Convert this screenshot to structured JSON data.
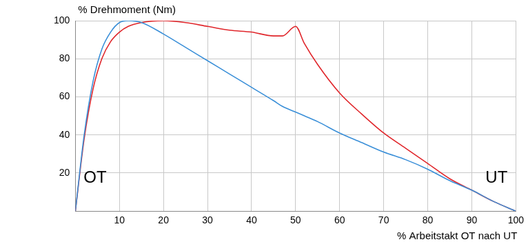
{
  "chart_data": {
    "type": "line",
    "y_label": "% Drehmoment (Nm)",
    "x_label": "% Arbeitstakt OT nach UT",
    "annotations": [
      "OT",
      "UT"
    ],
    "x": [
      0,
      2,
      4,
      6,
      8,
      10,
      12,
      15,
      20,
      25,
      30,
      35,
      40,
      45,
      47,
      50,
      52,
      55,
      60,
      65,
      70,
      75,
      80,
      85,
      90,
      95,
      100
    ],
    "series": [
      {
        "color": "#3a8fd8",
        "values": [
          0,
          40,
          68,
          85,
          94,
          99,
          100,
          99,
          93,
          86,
          79,
          72,
          65,
          58,
          55,
          52,
          50,
          47,
          41,
          36,
          31,
          27,
          22,
          16,
          11,
          5,
          0
        ]
      },
      {
        "color": "#e0262b",
        "values": [
          0,
          38,
          64,
          80,
          89,
          94,
          97,
          99,
          100,
          99,
          97,
          95,
          94,
          92,
          92,
          97,
          88,
          77,
          62,
          51,
          41,
          33,
          25,
          17,
          11,
          5,
          0
        ]
      }
    ],
    "xlim": [
      0,
      100
    ],
    "xticks": [
      10,
      20,
      30,
      40,
      50,
      60,
      70,
      80,
      90,
      100
    ],
    "ylim": [
      0,
      100
    ],
    "yticks": [
      20,
      40,
      60,
      80,
      100
    ],
    "grid": true
  }
}
